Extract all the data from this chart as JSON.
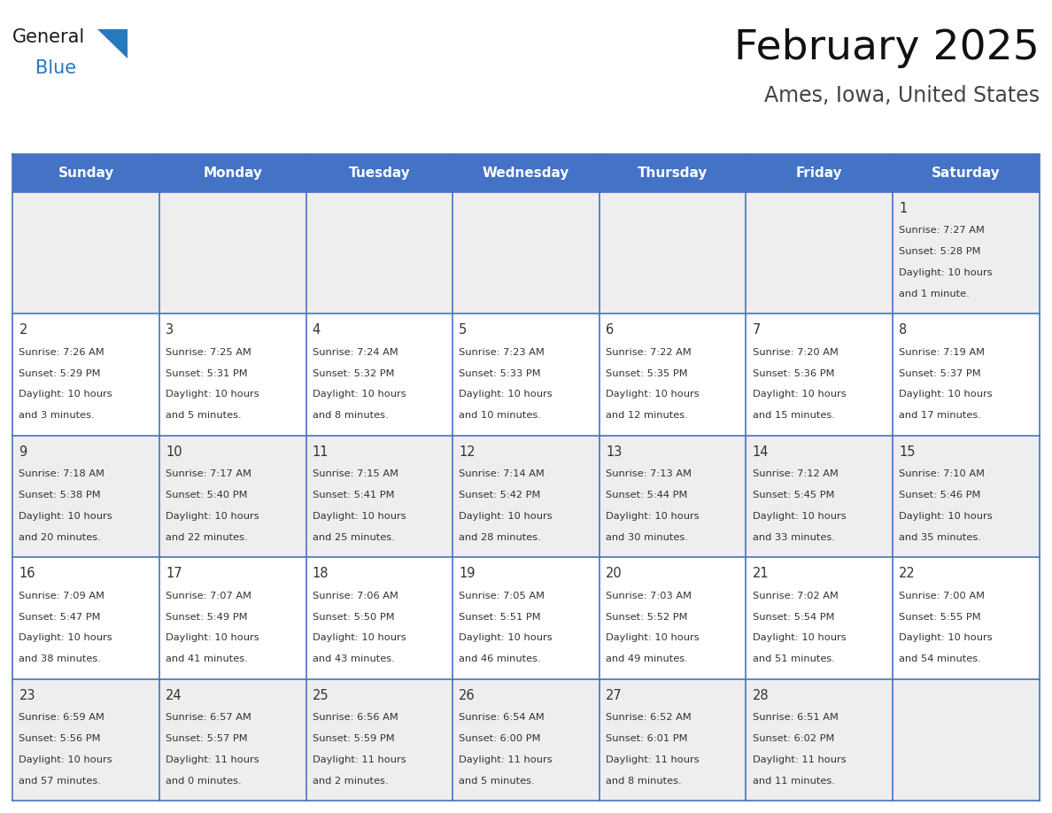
{
  "title": "February 2025",
  "subtitle": "Ames, Iowa, United States",
  "header_bg": "#4472C4",
  "header_text_color": "#FFFFFF",
  "day_headers": [
    "Sunday",
    "Monday",
    "Tuesday",
    "Wednesday",
    "Thursday",
    "Friday",
    "Saturday"
  ],
  "logo_color1": "#1a1a1a",
  "logo_color2": "#2878BE",
  "logo_triangle_color": "#2878BE",
  "grid_line_color": "#4472C4",
  "cell_bg_even": "#EEEEEE",
  "cell_bg_odd": "#FFFFFF",
  "day_text_color": "#333333",
  "days_data": [
    {
      "day": 1,
      "col": 6,
      "row": 0,
      "sunrise": "7:27 AM",
      "sunset": "5:28 PM",
      "daylight": "10 hours and 1 minute."
    },
    {
      "day": 2,
      "col": 0,
      "row": 1,
      "sunrise": "7:26 AM",
      "sunset": "5:29 PM",
      "daylight": "10 hours and 3 minutes."
    },
    {
      "day": 3,
      "col": 1,
      "row": 1,
      "sunrise": "7:25 AM",
      "sunset": "5:31 PM",
      "daylight": "10 hours and 5 minutes."
    },
    {
      "day": 4,
      "col": 2,
      "row": 1,
      "sunrise": "7:24 AM",
      "sunset": "5:32 PM",
      "daylight": "10 hours and 8 minutes."
    },
    {
      "day": 5,
      "col": 3,
      "row": 1,
      "sunrise": "7:23 AM",
      "sunset": "5:33 PM",
      "daylight": "10 hours and 10 minutes."
    },
    {
      "day": 6,
      "col": 4,
      "row": 1,
      "sunrise": "7:22 AM",
      "sunset": "5:35 PM",
      "daylight": "10 hours and 12 minutes."
    },
    {
      "day": 7,
      "col": 5,
      "row": 1,
      "sunrise": "7:20 AM",
      "sunset": "5:36 PM",
      "daylight": "10 hours and 15 minutes."
    },
    {
      "day": 8,
      "col": 6,
      "row": 1,
      "sunrise": "7:19 AM",
      "sunset": "5:37 PM",
      "daylight": "10 hours and 17 minutes."
    },
    {
      "day": 9,
      "col": 0,
      "row": 2,
      "sunrise": "7:18 AM",
      "sunset": "5:38 PM",
      "daylight": "10 hours and 20 minutes."
    },
    {
      "day": 10,
      "col": 1,
      "row": 2,
      "sunrise": "7:17 AM",
      "sunset": "5:40 PM",
      "daylight": "10 hours and 22 minutes."
    },
    {
      "day": 11,
      "col": 2,
      "row": 2,
      "sunrise": "7:15 AM",
      "sunset": "5:41 PM",
      "daylight": "10 hours and 25 minutes."
    },
    {
      "day": 12,
      "col": 3,
      "row": 2,
      "sunrise": "7:14 AM",
      "sunset": "5:42 PM",
      "daylight": "10 hours and 28 minutes."
    },
    {
      "day": 13,
      "col": 4,
      "row": 2,
      "sunrise": "7:13 AM",
      "sunset": "5:44 PM",
      "daylight": "10 hours and 30 minutes."
    },
    {
      "day": 14,
      "col": 5,
      "row": 2,
      "sunrise": "7:12 AM",
      "sunset": "5:45 PM",
      "daylight": "10 hours and 33 minutes."
    },
    {
      "day": 15,
      "col": 6,
      "row": 2,
      "sunrise": "7:10 AM",
      "sunset": "5:46 PM",
      "daylight": "10 hours and 35 minutes."
    },
    {
      "day": 16,
      "col": 0,
      "row": 3,
      "sunrise": "7:09 AM",
      "sunset": "5:47 PM",
      "daylight": "10 hours and 38 minutes."
    },
    {
      "day": 17,
      "col": 1,
      "row": 3,
      "sunrise": "7:07 AM",
      "sunset": "5:49 PM",
      "daylight": "10 hours and 41 minutes."
    },
    {
      "day": 18,
      "col": 2,
      "row": 3,
      "sunrise": "7:06 AM",
      "sunset": "5:50 PM",
      "daylight": "10 hours and 43 minutes."
    },
    {
      "day": 19,
      "col": 3,
      "row": 3,
      "sunrise": "7:05 AM",
      "sunset": "5:51 PM",
      "daylight": "10 hours and 46 minutes."
    },
    {
      "day": 20,
      "col": 4,
      "row": 3,
      "sunrise": "7:03 AM",
      "sunset": "5:52 PM",
      "daylight": "10 hours and 49 minutes."
    },
    {
      "day": 21,
      "col": 5,
      "row": 3,
      "sunrise": "7:02 AM",
      "sunset": "5:54 PM",
      "daylight": "10 hours and 51 minutes."
    },
    {
      "day": 22,
      "col": 6,
      "row": 3,
      "sunrise": "7:00 AM",
      "sunset": "5:55 PM",
      "daylight": "10 hours and 54 minutes."
    },
    {
      "day": 23,
      "col": 0,
      "row": 4,
      "sunrise": "6:59 AM",
      "sunset": "5:56 PM",
      "daylight": "10 hours and 57 minutes."
    },
    {
      "day": 24,
      "col": 1,
      "row": 4,
      "sunrise": "6:57 AM",
      "sunset": "5:57 PM",
      "daylight": "11 hours and 0 minutes."
    },
    {
      "day": 25,
      "col": 2,
      "row": 4,
      "sunrise": "6:56 AM",
      "sunset": "5:59 PM",
      "daylight": "11 hours and 2 minutes."
    },
    {
      "day": 26,
      "col": 3,
      "row": 4,
      "sunrise": "6:54 AM",
      "sunset": "6:00 PM",
      "daylight": "11 hours and 5 minutes."
    },
    {
      "day": 27,
      "col": 4,
      "row": 4,
      "sunrise": "6:52 AM",
      "sunset": "6:01 PM",
      "daylight": "11 hours and 8 minutes."
    },
    {
      "day": 28,
      "col": 5,
      "row": 4,
      "sunrise": "6:51 AM",
      "sunset": "6:02 PM",
      "daylight": "11 hours and 11 minutes."
    }
  ]
}
